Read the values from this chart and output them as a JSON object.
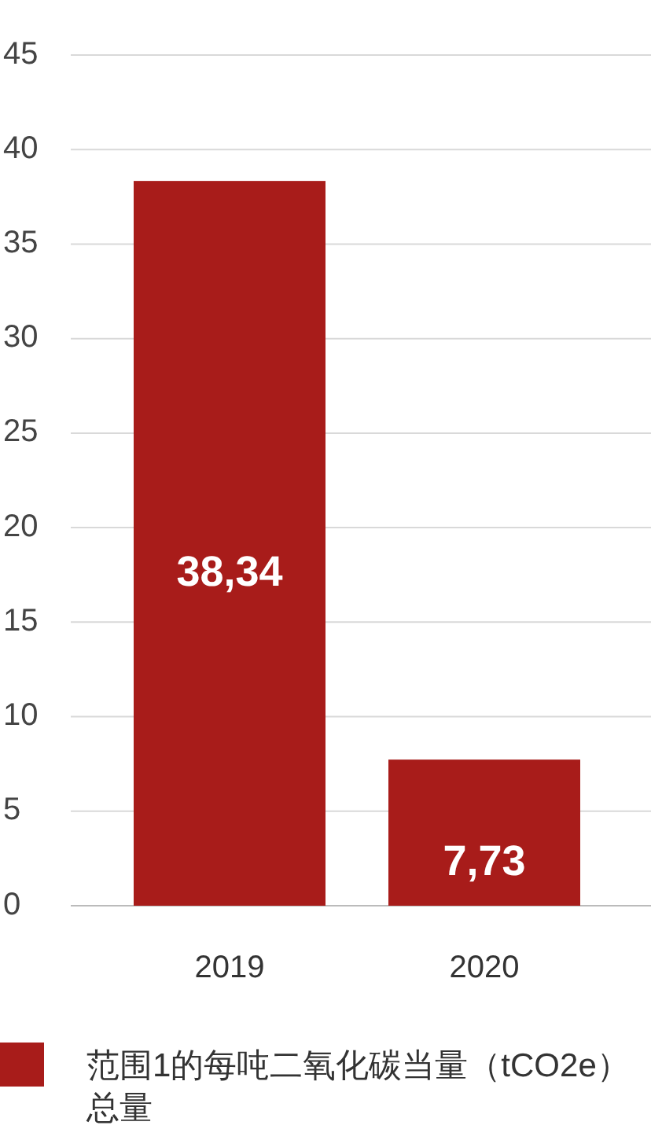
{
  "chart_data": {
    "type": "bar",
    "categories": [
      "2019",
      "2020"
    ],
    "series": [
      {
        "name": "范围1的每吨二氧化碳当量（tCO2e）总量",
        "color": "#a81c1a",
        "values": [
          38.34,
          7.73
        ],
        "value_labels": [
          "38,34",
          "7,73"
        ]
      }
    ],
    "ylim": [
      0,
      45
    ],
    "yticks": [
      0,
      5,
      10,
      15,
      20,
      25,
      30,
      35,
      40,
      45
    ],
    "grid": "y",
    "legend": "bottom"
  }
}
